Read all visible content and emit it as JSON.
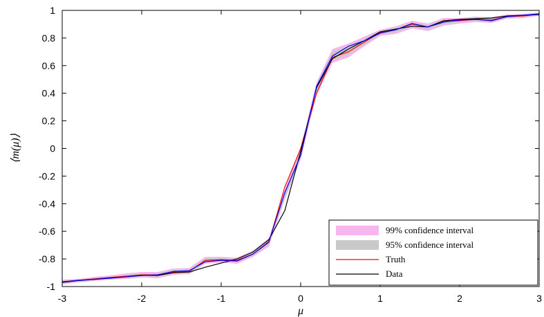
{
  "chart_data": {
    "type": "line",
    "xlabel": "μ",
    "ylabel": "⟨m(μ)⟩",
    "xlim": [
      -3,
      3
    ],
    "ylim": [
      -1,
      1
    ],
    "xticks": [
      -3,
      -2,
      -1,
      0,
      1,
      2,
      3
    ],
    "xtick_labels": [
      "-3",
      "-2",
      "-1",
      "0",
      "1",
      "2",
      "3"
    ],
    "yticks": [
      -1,
      -0.8,
      -0.6,
      -0.4,
      -0.2,
      0,
      0.2,
      0.4,
      0.6,
      0.8,
      1
    ],
    "ytick_labels": [
      "-1",
      "-0.8",
      "-0.6",
      "-0.4",
      "-0.2",
      "0",
      "0.2",
      "0.4",
      "0.6",
      "0.8",
      "1"
    ],
    "grid": false,
    "legend_position": "bottom-right",
    "x": [
      -3.0,
      -2.8,
      -2.6,
      -2.4,
      -2.2,
      -2.0,
      -1.8,
      -1.6,
      -1.4,
      -1.2,
      -1.0,
      -0.8,
      -0.6,
      -0.4,
      -0.2,
      0.0,
      0.2,
      0.4,
      0.6,
      0.8,
      1.0,
      1.2,
      1.4,
      1.6,
      1.8,
      2.0,
      2.2,
      2.4,
      2.6,
      2.8,
      3.0
    ],
    "series": [
      {
        "name": "99% confidence interval",
        "kind": "band",
        "color": "#f7b6ee",
        "lower": [
          -0.985,
          -0.97,
          -0.96,
          -0.95,
          -0.945,
          -0.935,
          -0.94,
          -0.915,
          -0.91,
          -0.835,
          -0.825,
          -0.835,
          -0.785,
          -0.71,
          -0.37,
          -0.08,
          0.39,
          0.62,
          0.66,
          0.74,
          0.815,
          0.83,
          0.87,
          0.85,
          0.89,
          0.905,
          0.915,
          0.91,
          0.94,
          0.945,
          0.96
        ],
        "upper": [
          -0.95,
          -0.945,
          -0.93,
          -0.92,
          -0.905,
          -0.895,
          -0.895,
          -0.87,
          -0.865,
          -0.785,
          -0.785,
          -0.79,
          -0.74,
          -0.65,
          -0.3,
          0.01,
          0.48,
          0.72,
          0.76,
          0.81,
          0.86,
          0.885,
          0.925,
          0.905,
          0.945,
          0.945,
          0.955,
          0.95,
          0.97,
          0.975,
          0.985
        ]
      },
      {
        "name": "95% confidence interval",
        "kind": "band",
        "color": "#c9c9c9",
        "lower": [
          -0.975,
          -0.962,
          -0.952,
          -0.942,
          -0.935,
          -0.925,
          -0.928,
          -0.905,
          -0.9,
          -0.825,
          -0.815,
          -0.823,
          -0.775,
          -0.695,
          -0.355,
          -0.06,
          0.41,
          0.64,
          0.68,
          0.755,
          0.825,
          0.843,
          0.883,
          0.864,
          0.902,
          0.915,
          0.925,
          0.92,
          0.948,
          0.953,
          0.965
        ],
        "upper": [
          -0.958,
          -0.95,
          -0.938,
          -0.928,
          -0.915,
          -0.905,
          -0.905,
          -0.88,
          -0.875,
          -0.795,
          -0.793,
          -0.8,
          -0.752,
          -0.665,
          -0.315,
          -0.01,
          0.46,
          0.7,
          0.74,
          0.795,
          0.852,
          0.873,
          0.913,
          0.893,
          0.935,
          0.937,
          0.947,
          0.942,
          0.963,
          0.968,
          0.98
        ]
      },
      {
        "name": "Truth",
        "kind": "line",
        "color": "#ff0000",
        "values": [
          -0.965,
          -0.955,
          -0.945,
          -0.935,
          -0.925,
          -0.915,
          -0.915,
          -0.895,
          -0.89,
          -0.81,
          -0.805,
          -0.81,
          -0.765,
          -0.68,
          -0.28,
          0.0,
          0.4,
          0.66,
          0.7,
          0.77,
          0.84,
          0.86,
          0.9,
          0.88,
          0.92,
          0.925,
          0.935,
          0.93,
          0.955,
          0.96,
          0.972
        ]
      },
      {
        "name": "Data",
        "kind": "line",
        "color": "#000000",
        "values": [
          -0.97,
          -0.957,
          -0.948,
          -0.938,
          -0.93,
          -0.918,
          -0.92,
          -0.9,
          -0.895,
          -0.86,
          -0.83,
          -0.8,
          -0.75,
          -0.66,
          -0.45,
          -0.02,
          0.44,
          0.65,
          0.72,
          0.78,
          0.845,
          0.865,
          0.885,
          0.88,
          0.925,
          0.935,
          0.94,
          0.945,
          0.96,
          0.965,
          0.97
        ]
      },
      {
        "name": "",
        "kind": "line",
        "color": "#0000ff",
        "values": [
          -0.967,
          -0.955,
          -0.948,
          -0.94,
          -0.93,
          -0.92,
          -0.915,
          -0.89,
          -0.885,
          -0.82,
          -0.81,
          -0.815,
          -0.765,
          -0.675,
          -0.32,
          -0.05,
          0.45,
          0.67,
          0.74,
          0.78,
          0.835,
          0.86,
          0.905,
          0.88,
          0.915,
          0.93,
          0.935,
          0.925,
          0.955,
          0.965,
          0.975
        ]
      }
    ],
    "legend": [
      {
        "label": "99% confidence interval",
        "swatch": "band",
        "color": "#f7b6ee"
      },
      {
        "label": "95% confidence interval",
        "swatch": "band",
        "color": "#c9c9c9"
      },
      {
        "label": "Truth",
        "swatch": "line",
        "color": "#ff0000"
      },
      {
        "label": "Data",
        "swatch": "line",
        "color": "#000000"
      }
    ]
  }
}
